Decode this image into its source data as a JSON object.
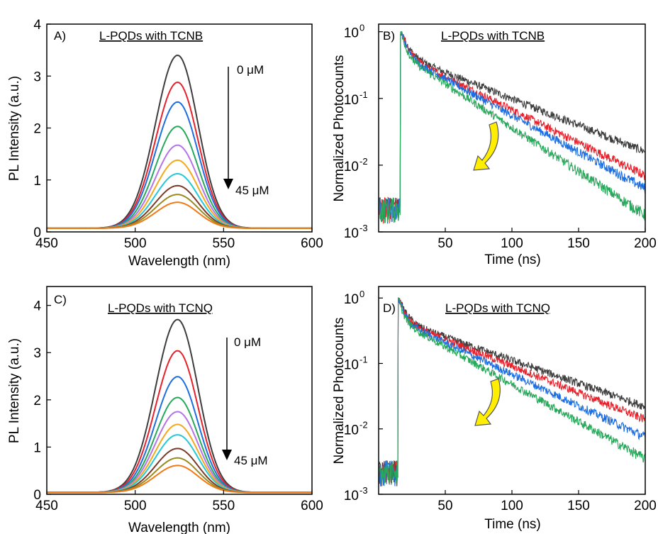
{
  "colors": {
    "pl_curves": [
      "#3d3d3d",
      "#e8202a",
      "#1d6ee0",
      "#27a85a",
      "#b573e8",
      "#f2a91c",
      "#24c8d8",
      "#7a3b2a",
      "#9a8a1e",
      "#f07a16"
    ],
    "decay": [
      "#3d3d3d",
      "#e8202a",
      "#1d6ee0",
      "#27a85a"
    ],
    "arrow_fill": "#ffee00"
  },
  "chart_data": [
    {
      "id": "A",
      "type": "line",
      "panel_label": "A)",
      "title": "L-PQDs with TCNB",
      "xlabel": "Wavelength (nm)",
      "ylabel": "PL Intensity (a.u.)",
      "xlim": [
        450,
        600
      ],
      "ylim": [
        0,
        4
      ],
      "xticks": [
        450,
        500,
        550,
        600
      ],
      "yticks": [
        0,
        1,
        2,
        3,
        4
      ],
      "center": 524,
      "series_peaks": [
        3.4,
        2.88,
        2.5,
        2.03,
        1.67,
        1.38,
        1.12,
        0.89,
        0.72,
        0.57
      ],
      "baseline": 0.07,
      "annotations": {
        "start": "0 μM",
        "end": "45 μM"
      }
    },
    {
      "id": "B",
      "type": "line",
      "panel_label": "B)",
      "title": "L-PQDs with TCNB",
      "xlabel": "Time (ns)",
      "ylabel": "Normalized Photocounts",
      "yscale": "log",
      "xlim": [
        0,
        200
      ],
      "ylim": [
        0.001,
        1.3
      ],
      "xticks": [
        50,
        100,
        150,
        200
      ],
      "yticks": [
        "10",
        "10",
        "10",
        "10"
      ],
      "ytick_exponents": [
        "0",
        "-1",
        "-2",
        "-3"
      ],
      "ytick_values": [
        1,
        0.1,
        0.01,
        0.001
      ],
      "rise_time": 17,
      "series_end_values": [
        0.016,
        0.007,
        0.0045,
        0.0018
      ]
    },
    {
      "id": "C",
      "type": "line",
      "panel_label": "C)",
      "title": "L-PQDs with TCNQ",
      "xlabel": "Wavelength (nm)",
      "ylabel": "PL Intensity (a.u.)",
      "xlim": [
        450,
        600
      ],
      "ylim": [
        0,
        4.4
      ],
      "xticks": [
        450,
        500,
        550,
        600
      ],
      "yticks": [
        0,
        1,
        2,
        3,
        4
      ],
      "center": 524,
      "series_peaks": [
        3.7,
        3.04,
        2.49,
        2.05,
        1.75,
        1.48,
        1.26,
        0.97,
        0.77,
        0.61
      ],
      "baseline": 0.04,
      "annotations": {
        "start": "0 μM",
        "end": "45 μM"
      }
    },
    {
      "id": "D",
      "type": "line",
      "panel_label": "D)",
      "title": "L-PQDs with TCNQ",
      "xlabel": "Time (ns)",
      "ylabel": "Normalized Photocounts",
      "yscale": "log",
      "xlim": [
        0,
        200
      ],
      "ylim": [
        0.001,
        1.5
      ],
      "xticks": [
        50,
        100,
        150,
        200
      ],
      "yticks": [
        "10",
        "10",
        "10",
        "10"
      ],
      "ytick_exponents": [
        "0",
        "-1",
        "-2",
        "-3"
      ],
      "ytick_values": [
        1,
        0.1,
        0.01,
        0.001
      ],
      "rise_time": 15,
      "series_end_values": [
        0.022,
        0.014,
        0.0075,
        0.0035
      ]
    }
  ]
}
